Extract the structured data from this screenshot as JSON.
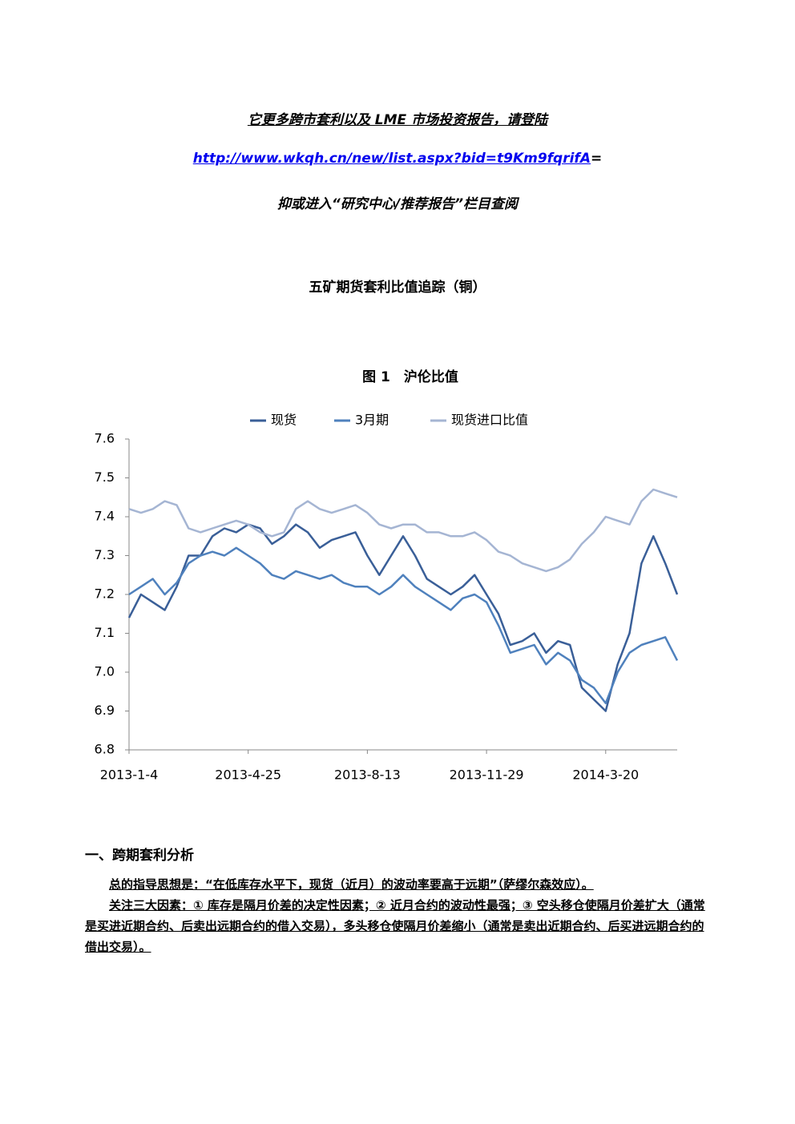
{
  "header": {
    "line1": "它更多跨市套利以及 LME 市场投资报告，请登陆",
    "link": "http://www.wkqh.cn/new/list.aspx?bid=t9Km9fqrifA",
    "link_suffix": "=",
    "line3": "抑或进入“研究中心/推荐报告”栏目查阅"
  },
  "title": "五矿期货套利比值追踪（铜）",
  "chart_data": {
    "type": "line",
    "title": "图 1　沪伦比值",
    "categories": [
      "2013-1-4",
      null,
      null,
      null,
      null,
      null,
      null,
      null,
      null,
      null,
      "2013-4-25",
      null,
      null,
      null,
      null,
      null,
      null,
      null,
      null,
      null,
      "2013-8-13",
      null,
      null,
      null,
      null,
      null,
      null,
      null,
      null,
      null,
      "2013-11-29",
      null,
      null,
      null,
      null,
      null,
      null,
      null,
      null,
      null,
      "2014-3-20",
      null,
      null,
      null,
      null,
      null,
      null
    ],
    "series": [
      {
        "name": "现货",
        "color": "#3a5f98",
        "values": [
          7.14,
          7.2,
          7.18,
          7.16,
          7.22,
          7.3,
          7.3,
          7.35,
          7.37,
          7.36,
          7.38,
          7.37,
          7.33,
          7.35,
          7.38,
          7.36,
          7.32,
          7.34,
          7.35,
          7.36,
          7.3,
          7.25,
          7.3,
          7.35,
          7.3,
          7.24,
          7.22,
          7.2,
          7.22,
          7.25,
          7.2,
          7.15,
          7.07,
          7.08,
          7.1,
          7.05,
          7.08,
          7.07,
          6.96,
          6.93,
          6.9,
          7.02,
          7.1,
          7.28,
          7.35,
          7.28,
          7.2
        ]
      },
      {
        "name": "3月期",
        "color": "#4f81bd",
        "values": [
          7.2,
          7.22,
          7.24,
          7.2,
          7.23,
          7.28,
          7.3,
          7.31,
          7.3,
          7.32,
          7.3,
          7.28,
          7.25,
          7.24,
          7.26,
          7.25,
          7.24,
          7.25,
          7.23,
          7.22,
          7.22,
          7.2,
          7.22,
          7.25,
          7.22,
          7.2,
          7.18,
          7.16,
          7.19,
          7.2,
          7.18,
          7.12,
          7.05,
          7.06,
          7.07,
          7.02,
          7.05,
          7.03,
          6.98,
          6.96,
          6.92,
          7.0,
          7.05,
          7.07,
          7.08,
          7.09,
          7.03
        ]
      },
      {
        "name": "现货进口比值",
        "color": "#a5b5d3",
        "values": [
          7.42,
          7.41,
          7.42,
          7.44,
          7.43,
          7.37,
          7.36,
          7.37,
          7.38,
          7.39,
          7.38,
          7.36,
          7.35,
          7.36,
          7.42,
          7.44,
          7.42,
          7.41,
          7.42,
          7.43,
          7.41,
          7.38,
          7.37,
          7.38,
          7.38,
          7.36,
          7.36,
          7.35,
          7.35,
          7.36,
          7.34,
          7.31,
          7.3,
          7.28,
          7.27,
          7.26,
          7.27,
          7.29,
          7.33,
          7.36,
          7.4,
          7.39,
          7.38,
          7.44,
          7.47,
          7.46,
          7.45
        ]
      }
    ],
    "ylim": [
      6.8,
      7.6
    ],
    "yticks": [
      6.8,
      6.9,
      {
        "value": 7,
        "label": "7.0"
      },
      7.1,
      7.2,
      7.3,
      7.4,
      7.5,
      7.6
    ],
    "grid": false,
    "legend": "top"
  },
  "section": {
    "heading": "一、跨期套利分析",
    "paragraphs": [
      "总的指导思想是：“在低库存水平下，现货（近月）的波动率要高于远期”（萨缪尔森效应）。",
      "关注三大因素：① 库存是隔月价差的决定性因素；② 近月合约的波动性最强；③ 空头移仓使隔月价差扩大（通常是买进近期合约、后卖出远期合约的借入交易），多头移仓使隔月价差缩小（通常是卖出近期合约、后买进远期合约的借出交易）。"
    ]
  }
}
